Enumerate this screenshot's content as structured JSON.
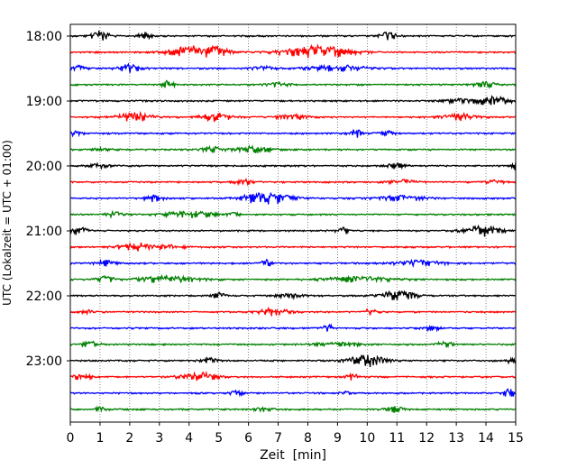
{
  "chart_data": {
    "type": "line",
    "title": "",
    "xlabel": "Zeit  [min]",
    "ylabel": "UTC (Lokalzeit = UTC + 01:00)",
    "xlim": [
      0,
      15
    ],
    "x_ticks": [
      "0",
      "1",
      "2",
      "3",
      "4",
      "5",
      "6",
      "7",
      "8",
      "9",
      "10",
      "11",
      "12",
      "13",
      "14",
      "15"
    ],
    "y_tick_labels": [
      "18:00",
      "19:00",
      "20:00",
      "21:00",
      "22:00",
      "23:00"
    ],
    "grid": "vertical dotted",
    "legend": "none",
    "trace_minutes": 15,
    "traces_per_hour": 4,
    "color_cycle": [
      "#000000",
      "#ff0000",
      "#0000ff",
      "#008000"
    ],
    "traces": [
      {
        "start": "18:00",
        "bursts": [
          [
            1.0,
            0.3,
            0.9
          ],
          [
            2.5,
            0.2,
            0.6
          ],
          [
            10.7,
            0.3,
            0.6
          ]
        ]
      },
      {
        "start": "18:15",
        "bursts": [
          [
            4.2,
            0.8,
            1.0
          ],
          [
            8.3,
            1.1,
            1.0
          ],
          [
            5.0,
            0.4,
            0.4
          ]
        ]
      },
      {
        "start": "18:30",
        "bursts": [
          [
            2.0,
            0.4,
            0.6
          ],
          [
            0.3,
            0.2,
            0.5
          ],
          [
            9.0,
            1.0,
            0.5
          ],
          [
            6.5,
            0.4,
            0.3
          ]
        ]
      },
      {
        "start": "18:45",
        "bursts": [
          [
            3.3,
            0.2,
            0.6
          ],
          [
            7.0,
            0.4,
            0.3
          ],
          [
            14.0,
            0.4,
            0.4
          ]
        ]
      },
      {
        "start": "19:00",
        "bursts": [
          [
            14.2,
            0.6,
            0.7
          ],
          [
            13.0,
            0.4,
            0.3
          ]
        ]
      },
      {
        "start": "19:15",
        "bursts": [
          [
            2.2,
            0.6,
            0.7
          ],
          [
            4.9,
            0.5,
            0.7
          ],
          [
            7.5,
            0.5,
            0.4
          ],
          [
            13.1,
            0.6,
            0.5
          ]
        ]
      },
      {
        "start": "19:30",
        "bursts": [
          [
            0.2,
            0.2,
            0.4
          ],
          [
            9.6,
            0.2,
            0.7
          ],
          [
            10.6,
            0.3,
            0.4
          ]
        ]
      },
      {
        "start": "19:45",
        "bursts": [
          [
            1.1,
            0.3,
            0.3
          ],
          [
            4.8,
            0.4,
            0.4
          ],
          [
            6.2,
            0.6,
            0.5
          ]
        ]
      },
      {
        "start": "20:00",
        "bursts": [
          [
            1.0,
            0.4,
            0.3
          ],
          [
            11.0,
            0.3,
            0.4
          ],
          [
            15.0,
            0.1,
            0.7
          ]
        ]
      },
      {
        "start": "20:15",
        "bursts": [
          [
            5.8,
            0.3,
            0.4
          ],
          [
            11.2,
            0.4,
            0.4
          ],
          [
            14.3,
            0.3,
            0.3
          ]
        ]
      },
      {
        "start": "20:30",
        "bursts": [
          [
            6.6,
            0.8,
            1.0
          ],
          [
            2.8,
            0.3,
            0.5
          ],
          [
            11.2,
            0.8,
            0.4
          ]
        ]
      },
      {
        "start": "20:45",
        "bursts": [
          [
            4.0,
            0.8,
            0.6
          ],
          [
            1.5,
            0.3,
            0.4
          ],
          [
            5.5,
            0.2,
            0.3
          ]
        ]
      },
      {
        "start": "21:00",
        "bursts": [
          [
            0.3,
            0.3,
            0.6
          ],
          [
            13.9,
            0.6,
            0.8
          ],
          [
            9.2,
            0.2,
            0.5
          ]
        ]
      },
      {
        "start": "21:15",
        "bursts": [
          [
            2.2,
            0.6,
            0.6
          ],
          [
            3.2,
            0.6,
            0.3
          ]
        ]
      },
      {
        "start": "21:30",
        "bursts": [
          [
            1.2,
            0.3,
            0.5
          ],
          [
            6.6,
            0.2,
            0.5
          ],
          [
            11.8,
            0.8,
            0.4
          ]
        ]
      },
      {
        "start": "21:45",
        "bursts": [
          [
            3.3,
            1.0,
            0.5
          ],
          [
            1.2,
            0.3,
            0.5
          ],
          [
            9.7,
            1.2,
            0.4
          ]
        ]
      },
      {
        "start": "22:00",
        "bursts": [
          [
            11.0,
            0.6,
            0.8
          ],
          [
            5.0,
            0.2,
            0.5
          ],
          [
            7.5,
            0.5,
            0.3
          ]
        ]
      },
      {
        "start": "22:15",
        "bursts": [
          [
            6.9,
            0.5,
            0.6
          ],
          [
            10.1,
            0.2,
            0.6
          ],
          [
            0.6,
            0.2,
            0.3
          ]
        ]
      },
      {
        "start": "22:30",
        "bursts": [
          [
            8.7,
            0.2,
            0.5
          ],
          [
            12.2,
            0.3,
            0.3
          ]
        ]
      },
      {
        "start": "22:45",
        "bursts": [
          [
            0.7,
            0.3,
            0.4
          ],
          [
            9.0,
            0.8,
            0.3
          ],
          [
            12.6,
            0.3,
            0.4
          ]
        ]
      },
      {
        "start": "23:00",
        "bursts": [
          [
            10.0,
            0.6,
            0.9
          ],
          [
            4.7,
            0.3,
            0.4
          ],
          [
            14.8,
            0.2,
            0.3
          ]
        ]
      },
      {
        "start": "23:15",
        "bursts": [
          [
            4.3,
            0.6,
            0.7
          ],
          [
            0.4,
            0.3,
            0.5
          ],
          [
            9.5,
            0.2,
            0.5
          ]
        ]
      },
      {
        "start": "23:30",
        "bursts": [
          [
            14.8,
            0.2,
            0.7
          ],
          [
            5.6,
            0.2,
            0.4
          ],
          [
            9.2,
            0.2,
            0.3
          ]
        ]
      },
      {
        "start": "23:45",
        "bursts": [
          [
            10.9,
            0.3,
            0.5
          ],
          [
            1.0,
            0.2,
            0.3
          ],
          [
            6.5,
            0.3,
            0.3
          ]
        ]
      }
    ]
  }
}
